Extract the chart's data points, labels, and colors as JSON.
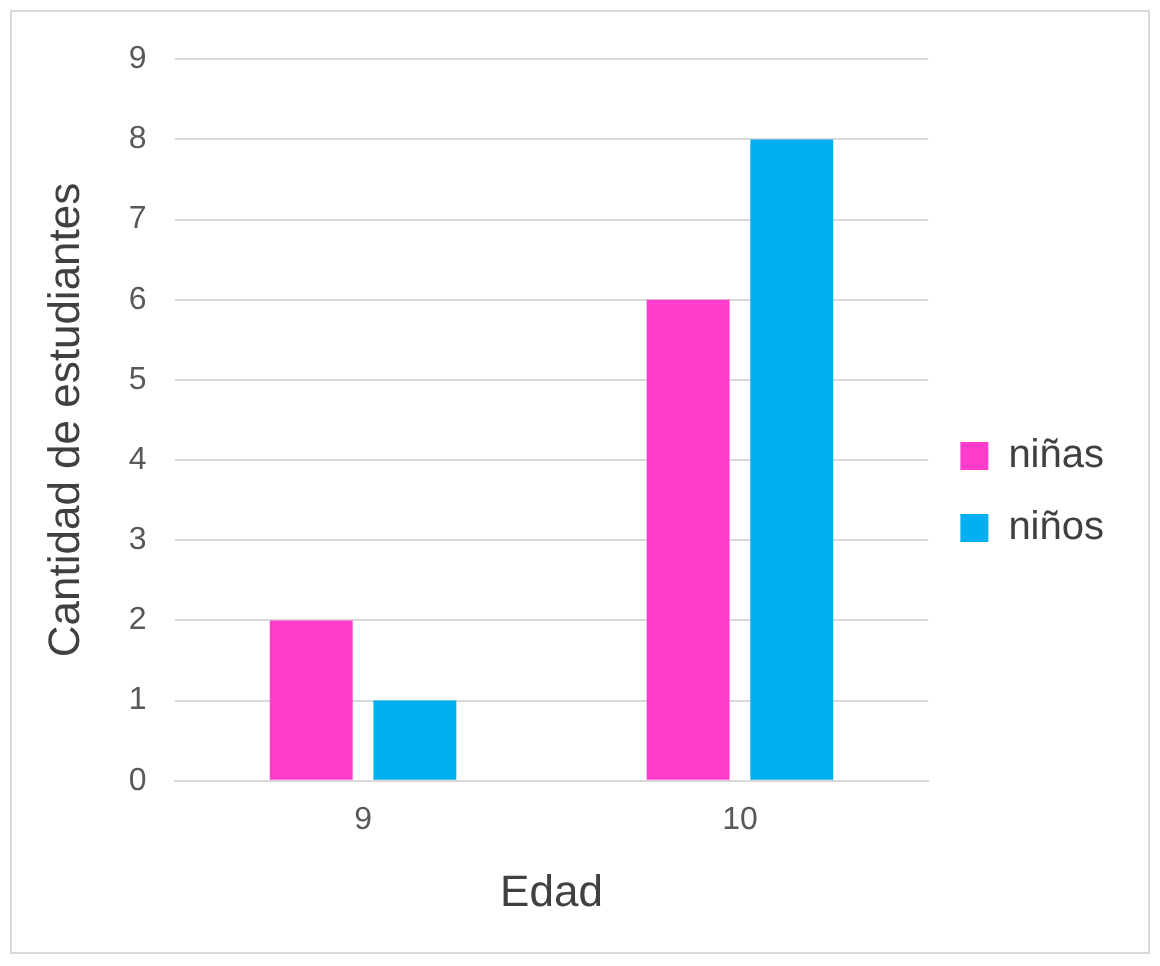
{
  "chart_data": {
    "type": "bar",
    "xlabel": "Edad",
    "ylabel": "Cantidad de estudiantes",
    "categories": [
      "9",
      "10"
    ],
    "series": [
      {
        "name": "niñas",
        "color": "#ff3dcc",
        "values": [
          2,
          6
        ]
      },
      {
        "name": "niños",
        "color": "#00b0f0",
        "values": [
          1,
          8
        ]
      }
    ],
    "ylim": [
      0,
      9
    ],
    "yticks": [
      0,
      1,
      2,
      3,
      4,
      5,
      6,
      7,
      8,
      9
    ],
    "grid": "y",
    "legend": "right"
  }
}
